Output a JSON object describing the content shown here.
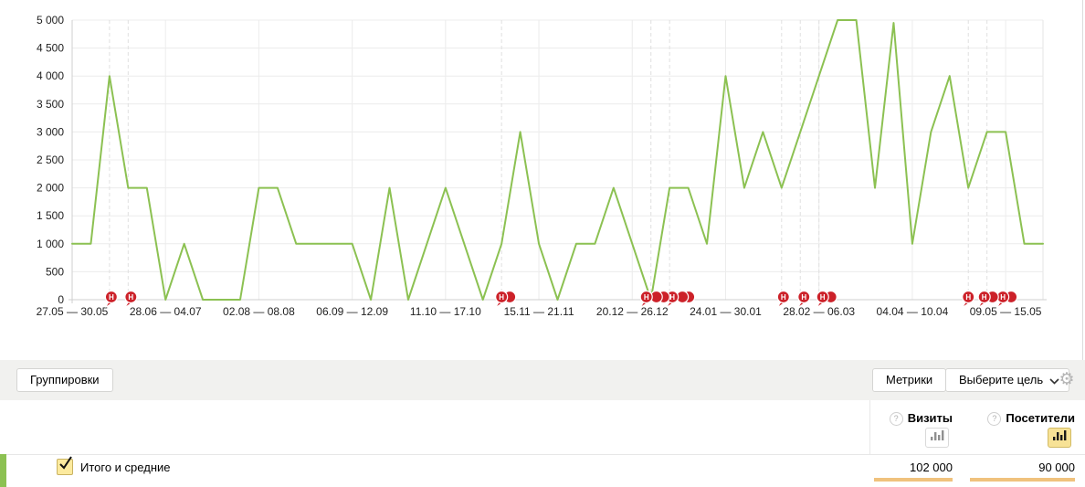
{
  "chart_data": {
    "type": "line",
    "title": "",
    "xlabel": "",
    "ylabel": "",
    "ylim": [
      0,
      5000
    ],
    "y_tick_step": 500,
    "y_tick_labels": [
      "0",
      "500",
      "1 000",
      "1 500",
      "2 000",
      "2 500",
      "3 000",
      "3 500",
      "4 000",
      "4 500",
      "5 000"
    ],
    "x_labels": [
      "27.05 — 30.05",
      "28.06 — 04.07",
      "02.08 — 08.08",
      "06.09 — 12.09",
      "11.10 — 17.10",
      "15.11 — 21.11",
      "20.12 — 26.12",
      "24.01 — 30.01",
      "28.02 — 06.03",
      "04.04 — 10.04",
      "09.05 — 15.05"
    ],
    "x_label_every": 5,
    "grid": true,
    "legend": "none",
    "line_color": "#8cc152",
    "values": [
      1000,
      1000,
      4000,
      2000,
      2000,
      0,
      1000,
      0,
      0,
      0,
      2000,
      2000,
      1000,
      1000,
      1000,
      1000,
      0,
      2000,
      0,
      1000,
      2000,
      1000,
      0,
      1000,
      3000,
      1000,
      0,
      1000,
      1000,
      2000,
      1000,
      0,
      2000,
      2000,
      1000,
      4000,
      2000,
      3000,
      2000,
      3000,
      4000,
      5000,
      5000,
      2000,
      4950,
      1000,
      3000,
      4000,
      2000,
      3000,
      3000,
      1000,
      1000
    ],
    "annotations": {
      "badge_letter": "Н",
      "badge_color": "#cc2129",
      "dashed_line_points": [
        2,
        3,
        23,
        31,
        32,
        38,
        39,
        40,
        48,
        49
      ],
      "badges": [
        {
          "p": 2,
          "dx": 2,
          "n": true
        },
        {
          "p": 3,
          "dx": 3,
          "n": true
        },
        {
          "p": 23,
          "dx": 0,
          "n": true
        },
        {
          "p": 23,
          "dx": 9,
          "n": false
        },
        {
          "p": 31,
          "dx": -5,
          "n": true
        },
        {
          "p": 31,
          "dx": 6,
          "n": false
        },
        {
          "p": 31,
          "dx": 14,
          "n": false
        },
        {
          "p": 32,
          "dx": 3,
          "n": true
        },
        {
          "p": 32,
          "dx": 14,
          "n": false
        },
        {
          "p": 32,
          "dx": 21,
          "n": false
        },
        {
          "p": 38,
          "dx": 2,
          "n": true
        },
        {
          "p": 39,
          "dx": 4,
          "n": true
        },
        {
          "p": 40,
          "dx": 4,
          "n": true
        },
        {
          "p": 40,
          "dx": 13,
          "n": false
        },
        {
          "p": 48,
          "dx": 0,
          "n": true
        },
        {
          "p": 49,
          "dx": -3,
          "n": true
        },
        {
          "p": 49,
          "dx": 6,
          "n": false
        },
        {
          "p": 50,
          "dx": -3,
          "n": true
        },
        {
          "p": 50,
          "dx": 6,
          "n": false
        }
      ]
    }
  },
  "toolbar": {
    "groupings_label": "Группировки",
    "metrics_label": "Метрики",
    "goal_label": "Выберите цель"
  },
  "icons": {
    "help": "?",
    "gear": "⚙"
  },
  "metrics_panel": {
    "columns": [
      {
        "label": "Визиты",
        "total": "102 000",
        "chart_toggle_selected": false
      },
      {
        "label": "Посетители",
        "total": "90 000",
        "chart_toggle_selected": true
      }
    ]
  },
  "totals_row": {
    "label": "Итого и средние"
  },
  "colors": {
    "line_green": "#8cc152",
    "badge_red": "#cc2129",
    "selected_yellow": "#f7e296",
    "total_bar_orange": "#f0c27d"
  }
}
